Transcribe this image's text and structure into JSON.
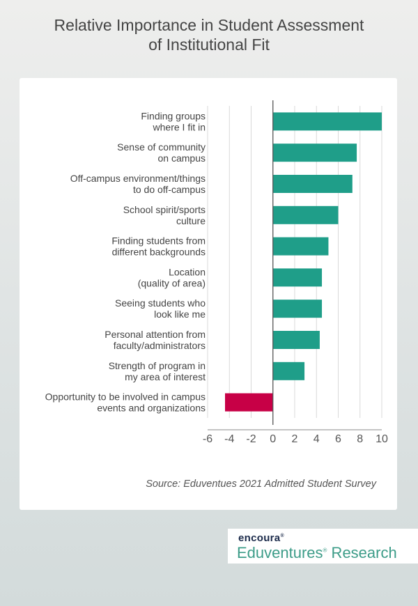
{
  "title_lines": [
    "Relative Importance in Student Assessment",
    "of Institutional Fit"
  ],
  "source": "Source: Eduventues 2021 Admitted Student Survey",
  "logo": {
    "brand": "encoura",
    "brand_mark": "®",
    "product": "Eduventures",
    "product_mark": "®",
    "product_suffix": " Research"
  },
  "chart_data": {
    "type": "bar",
    "orientation": "horizontal",
    "title": "Relative Importance in Student Assessment of Institutional Fit",
    "categories": [
      [
        "Finding groups",
        "where I fit in"
      ],
      [
        "Sense of community",
        "on campus"
      ],
      [
        "Off-campus environment/things",
        "to do off-campus"
      ],
      [
        "School spirit/sports",
        "culture"
      ],
      [
        "Finding students from",
        "different backgrounds"
      ],
      [
        "Location",
        "(quality of area)"
      ],
      [
        "Seeing students who",
        "look like me"
      ],
      [
        "Personal attention from",
        "faculty/administrators"
      ],
      [
        "Strength of program in",
        "my area of interest"
      ],
      [
        "Opportunity to be involved in campus",
        "events and organizations"
      ]
    ],
    "values": [
      10.0,
      7.7,
      7.3,
      6.0,
      5.1,
      4.5,
      4.5,
      4.3,
      2.9,
      -4.4
    ],
    "xlim": [
      -6,
      10
    ],
    "xticks": [
      "-6",
      "-4",
      "-2",
      "0",
      "2",
      "4",
      "6",
      "8",
      "10"
    ],
    "grid": true,
    "colors": {
      "positive": "#1f9e89",
      "negative": "#c70046",
      "grid": "#d9d9d9",
      "axis": "#555555"
    }
  }
}
